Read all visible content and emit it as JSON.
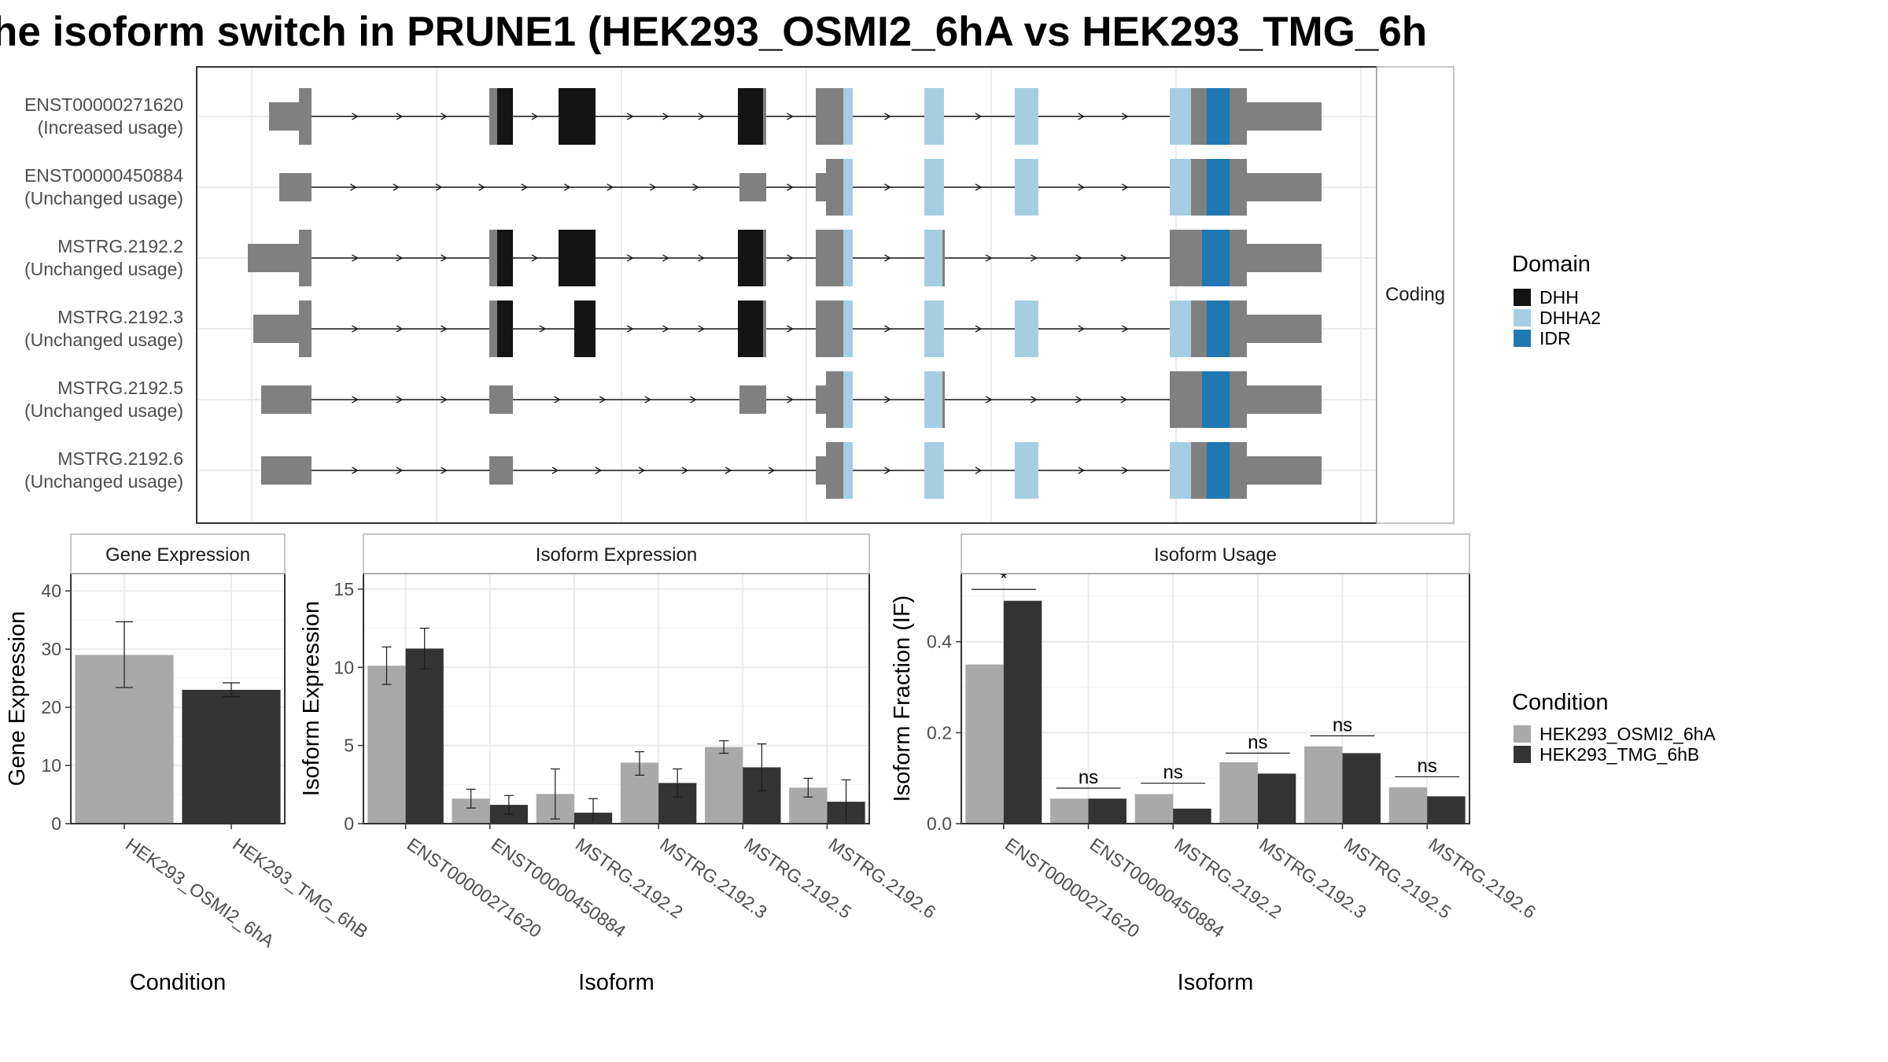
{
  "title": "he isoform switch in PRUNE1 (HEK293_OSMI2_6hA vs HEK293_TMG_6h",
  "colors": {
    "DHH": "#141414",
    "DHHA2": "#a6cee3",
    "IDR": "#1f78b4",
    "noncoding_exon": "#808080",
    "condA": "#a9a9a9",
    "condB": "#333333",
    "panel_border": "#333333",
    "strip_border": "#b3b3b3",
    "grid": "#ebebeb",
    "text_dark": "#1a1a1a",
    "text_axis": "#4d4d4d"
  },
  "chart_data": [
    {
      "type": "gene-structure",
      "facet_label": "Coding",
      "isoforms": [
        {
          "id": "ENST00000271620",
          "usage": "(Increased usage)"
        },
        {
          "id": "ENST00000450884",
          "usage": "(Unchanged usage)"
        },
        {
          "id": "MSTRG.2192.2",
          "usage": "(Unchanged usage)"
        },
        {
          "id": "MSTRG.2192.3",
          "usage": "(Unchanged usage)"
        },
        {
          "id": "MSTRG.2192.5",
          "usage": "(Unchanged usage)"
        },
        {
          "id": "MSTRG.2192.6",
          "usage": "(Unchanged usage)"
        }
      ],
      "legend": {
        "title": "Domain",
        "entries": [
          {
            "label": "DHH",
            "color": "#141414"
          },
          {
            "label": "DHHA2",
            "color": "#a6cee3"
          },
          {
            "label": "IDR",
            "color": "#1f78b4"
          }
        ]
      }
    },
    {
      "type": "bar",
      "strip": "Gene Expression",
      "xlabel": "Condition",
      "ylabel": "Gene Expression",
      "ylim": [
        0,
        43
      ],
      "yticks": [
        0,
        10,
        20,
        30,
        40
      ],
      "categories": [
        "HEK293_OSMI2_6hA",
        "HEK293_TMG_6hB"
      ],
      "values": [
        29.0,
        23.0
      ],
      "err_low": [
        23.4,
        21.8
      ],
      "err_high": [
        34.7,
        24.2
      ]
    },
    {
      "type": "bar",
      "strip": "Isoform Expression",
      "xlabel": "Isoform",
      "ylabel": "Isoform Expression",
      "ylim": [
        0,
        16
      ],
      "yticks": [
        0,
        5,
        10,
        15
      ],
      "categories": [
        "ENST00000271620",
        "ENST00000450884",
        "MSTRG.2192.2",
        "MSTRG.2192.3",
        "MSTRG.2192.5",
        "MSTRG.2192.6"
      ],
      "series": [
        {
          "values": [
            10.1,
            1.6,
            1.9,
            3.9,
            4.9,
            2.3
          ],
          "err_low": [
            8.9,
            1.0,
            0.3,
            3.1,
            4.5,
            1.7
          ],
          "err_high": [
            11.3,
            2.2,
            3.5,
            4.6,
            5.3,
            2.9
          ]
        },
        {
          "values": [
            11.2,
            1.2,
            0.7,
            2.6,
            3.6,
            1.4
          ],
          "err_low": [
            9.9,
            0.6,
            0.0,
            1.7,
            2.1,
            0.0
          ],
          "err_high": [
            12.5,
            1.8,
            1.6,
            3.5,
            5.1,
            2.8
          ]
        }
      ]
    },
    {
      "type": "bar",
      "strip": "Isoform Usage",
      "xlabel": "Isoform",
      "ylabel": "Isoform Fraction (IF)",
      "ylim": [
        0,
        0.55
      ],
      "yticks": [
        0.0,
        0.2,
        0.4
      ],
      "ytick_labels": [
        "0.0",
        "0.2",
        "0.4"
      ],
      "categories": [
        "ENST00000271620",
        "ENST00000450884",
        "MSTRG.2192.2",
        "MSTRG.2192.3",
        "MSTRG.2192.5",
        "MSTRG.2192.6"
      ],
      "series": [
        {
          "values": [
            0.35,
            0.055,
            0.065,
            0.135,
            0.17,
            0.08
          ]
        },
        {
          "values": [
            0.49,
            0.055,
            0.033,
            0.11,
            0.155,
            0.06
          ]
        }
      ],
      "significance": [
        "*",
        "ns",
        "ns",
        "ns",
        "ns",
        "ns"
      ],
      "sig_line_values": [
        0.515,
        0.078,
        0.089,
        0.155,
        0.193,
        0.103
      ]
    }
  ],
  "condition_legend": {
    "title": "Condition",
    "entries": [
      {
        "label": "HEK293_OSMI2_6hA",
        "color": "#a9a9a9"
      },
      {
        "label": "HEK293_TMG_6hB",
        "color": "#333333"
      }
    ]
  }
}
